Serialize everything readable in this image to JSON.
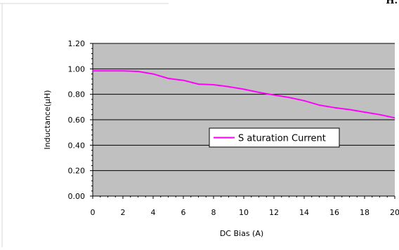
{
  "corner_text": "H.",
  "chart_data": {
    "type": "line",
    "title": "",
    "xlabel": "DC Bias (A)",
    "ylabel": "Inductance(μH)",
    "xlim": [
      0,
      20
    ],
    "ylim": [
      0,
      1.2
    ],
    "x_ticks": [
      "0",
      "2",
      "4",
      "6",
      "8",
      "10",
      "12",
      "14",
      "16",
      "18",
      "20"
    ],
    "y_ticks": [
      "0.00",
      "0.20",
      "0.40",
      "0.60",
      "0.80",
      "1.00",
      "1.20"
    ],
    "grid": true,
    "plot_background": "#c0c0c0",
    "legend_position": "center-right",
    "series": [
      {
        "name": "S aturation Current",
        "color": "#ff00ff",
        "x": [
          0,
          1,
          2,
          3,
          4,
          5,
          6,
          7,
          8,
          9,
          10,
          11,
          12,
          13,
          14,
          15,
          16,
          17,
          18,
          19,
          20
        ],
        "y": [
          0.985,
          0.985,
          0.985,
          0.98,
          0.96,
          0.925,
          0.91,
          0.88,
          0.875,
          0.86,
          0.84,
          0.815,
          0.795,
          0.775,
          0.75,
          0.715,
          0.695,
          0.68,
          0.66,
          0.64,
          0.615
        ]
      }
    ]
  }
}
